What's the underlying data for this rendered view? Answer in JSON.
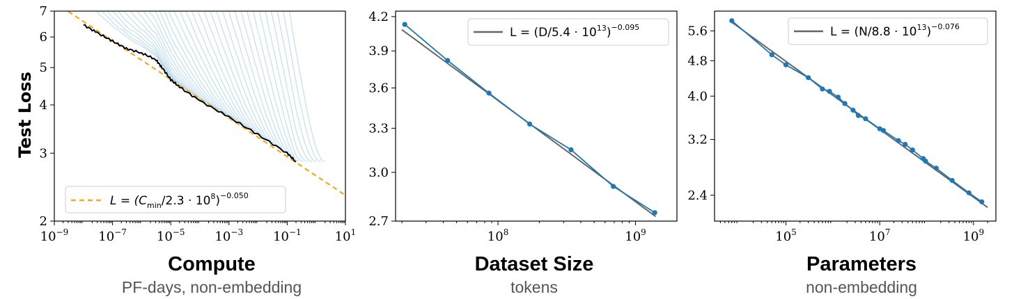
{
  "ylabel": "Test Loss",
  "panels": [
    {
      "caption_title": "Compute",
      "caption_sub": "PF-days, non-embedding",
      "legend": {
        "prefix": "L = (C",
        "subscript": "min",
        "mid": "/2.3 · 10",
        "inner_sup": "8",
        "close": ")",
        "exponent": "−0.050",
        "color": "#f5a623"
      },
      "x_ticks": [
        {
          "base": "10",
          "exp": "−9",
          "value": -9
        },
        {
          "base": "10",
          "exp": "−7",
          "value": -7
        },
        {
          "base": "10",
          "exp": "−5",
          "value": -5
        },
        {
          "base": "10",
          "exp": "−3",
          "value": -3
        },
        {
          "base": "10",
          "exp": "−1",
          "value": -1
        },
        {
          "base": "10",
          "exp": "1",
          "value": 1
        }
      ],
      "y_ticks": [
        "2",
        "3",
        "4",
        "5",
        "6",
        "7"
      ]
    },
    {
      "caption_title": "Dataset Size",
      "caption_sub": "tokens",
      "legend": {
        "prefix": "L = (D/5.4 · 10",
        "inner_sup": "13",
        "close": ")",
        "exponent": "−0.095",
        "color": "#666666"
      },
      "x_ticks": [
        {
          "base": "10",
          "exp": "8",
          "value": 8
        },
        {
          "base": "10",
          "exp": "9",
          "value": 9
        }
      ],
      "y_ticks": [
        "2.7",
        "3.0",
        "3.3",
        "3.6",
        "3.9",
        "4.2"
      ]
    },
    {
      "caption_title": "Parameters",
      "caption_sub": "non-embedding",
      "legend": {
        "prefix": "L = (N/8.8 · 10",
        "inner_sup": "13",
        "close": ")",
        "exponent": "−0.076",
        "color": "#666666"
      },
      "x_ticks": [
        {
          "base": "10",
          "exp": "5",
          "value": 5
        },
        {
          "base": "10",
          "exp": "7",
          "value": 7
        },
        {
          "base": "10",
          "exp": "9",
          "value": 9
        }
      ],
      "y_ticks": [
        "2.4",
        "3.2",
        "4.0",
        "4.8",
        "5.6"
      ]
    }
  ],
  "colors": {
    "points": "#1f77b4",
    "fit": "#666666",
    "frontier": "#000000",
    "runs": "#9ecae1",
    "compute_fit": "#f5a623"
  },
  "chart_data": [
    {
      "type": "line",
      "xscale": "log",
      "yscale": "log",
      "xlim": [
        1e-09,
        10
      ],
      "ylim": [
        2,
        7
      ],
      "xlabel": "Compute",
      "ylabel": "Test Loss",
      "series": [
        {
          "values_note": "",
          "x": [
            1e-08,
            3e-08,
            1e-07,
            3e-07,
            1e-06,
            3e-06,
            5e-06,
            1e-05,
            2e-05,
            0.0001,
            0.001,
            0.01,
            0.1,
            0.2
          ],
          "y": [
            6.45,
            6.15,
            5.85,
            5.6,
            5.45,
            5.25,
            5.0,
            4.65,
            4.45,
            4.1,
            3.72,
            3.35,
            3.0,
            2.85
          ]
        }
      ],
      "fit": {
        "A": 230000000.0,
        "alpha": 0.05
      }
    },
    {
      "type": "line",
      "xscale": "log",
      "yscale": "log",
      "xlim": [
        18000000.0,
        2000000000.0
      ],
      "ylim": [
        2.7,
        4.25
      ],
      "series": [
        {
          "x": [
            21000000.0,
            43000000.0,
            86000000.0,
            170000000.0,
            340000000.0,
            690000000.0,
            1380000000.0
          ],
          "y": [
            4.13,
            3.82,
            3.56,
            3.33,
            3.15,
            2.91,
            2.75
          ]
        }
      ],
      "fit": {
        "A": 54000000000000.0,
        "alpha": 0.095,
        "x_range": [
          20000000.0,
          1400000000.0
        ]
      }
    },
    {
      "type": "line",
      "xscale": "log",
      "yscale": "log",
      "xlim": [
        3000.0,
        3000000000.0
      ],
      "ylim": [
        2.1,
        6.2
      ],
      "series": [
        {
          "x": [
            7000.0,
            50000.0,
            100000.0,
            300000.0,
            600000.0,
            850000.0,
            1300000.0,
            1800000.0,
            2700000.0,
            3500000.0,
            5000000.0,
            10000000.0,
            12000000.0,
            25000000.0,
            35000000.0,
            50000000.0,
            85000000.0,
            95000000.0,
            160000000.0,
            350000000.0,
            800000000.0,
            1500000000.0
          ],
          "y": [
            5.9,
            4.95,
            4.7,
            4.4,
            4.15,
            4.1,
            3.98,
            3.85,
            3.72,
            3.62,
            3.56,
            3.38,
            3.35,
            3.18,
            3.12,
            3.03,
            2.9,
            2.86,
            2.76,
            2.59,
            2.43,
            2.32
          ]
        }
      ],
      "fit": {
        "A": 88000000000000.0,
        "alpha": 0.076,
        "x_range": [
          7000.0,
          2000000000.0
        ]
      }
    }
  ]
}
